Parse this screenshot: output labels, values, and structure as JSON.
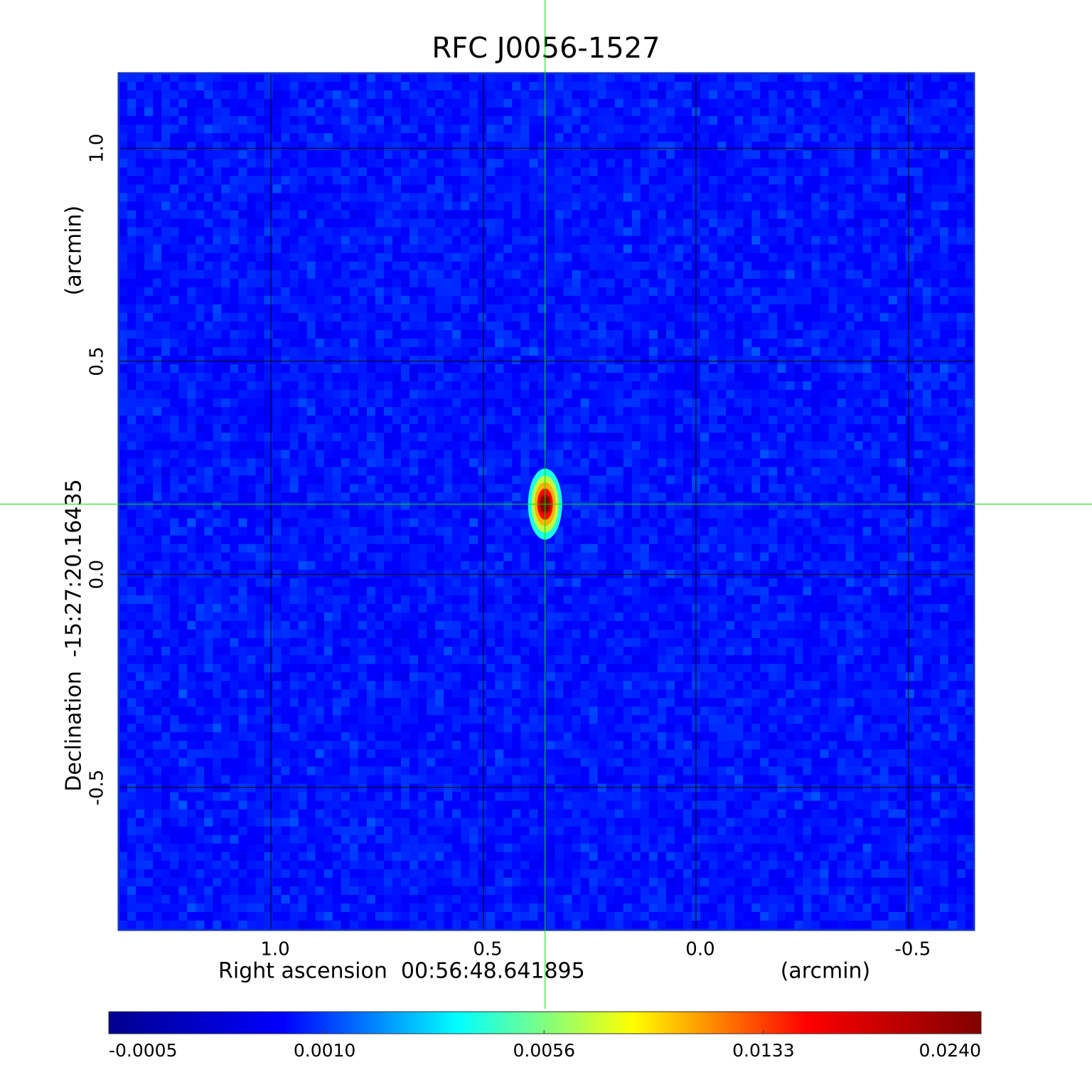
{
  "chart_data": {
    "type": "image",
    "title": "RFC J0056-1527",
    "x_label": "Right ascension  00:56:48.641895",
    "x_unit_label": "(arcmin)",
    "y_label": "Declination  -15:27:20.16435",
    "y_unit_label": "(arcmin)",
    "xlim": [
      1.358,
      -0.654
    ],
    "ylim": [
      -0.834,
      1.176
    ],
    "xticks": [
      {
        "value": 1,
        "label": "1.0"
      },
      0.5,
      {
        "value": 0,
        "label": "0.0"
      },
      -0.5
    ],
    "yticks": [
      {
        "value": 1,
        "label": "1.0"
      },
      0.5,
      {
        "value": 0,
        "label": "0.0"
      },
      -0.5
    ],
    "grid": true,
    "grid_color": "#000000",
    "crosshair_color": "#00e000",
    "title_color": "#1010d0",
    "colormap": [
      "#00008f",
      "#0000ff",
      "#00ffff",
      "#ffff00",
      "#ff0000",
      "#800000"
    ],
    "colorbar_scale": "sqrt",
    "clim": [
      -0.0005,
      0.024
    ],
    "colorbar_ticks": [
      -0.0005,
      {
        "value": 0.001,
        "label": "0.0010"
      },
      0.0056,
      0.0133,
      {
        "value": 0.024,
        "label": "0.0240"
      }
    ],
    "source": {
      "x": 0.355,
      "y": 0.165,
      "peak": 0.024
    }
  }
}
